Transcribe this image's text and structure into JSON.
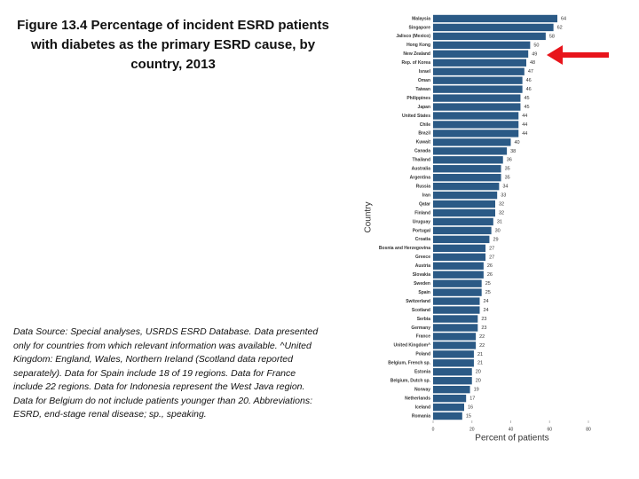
{
  "chart_data": {
    "type": "hbar",
    "title": "Figure 13.4 Percentage of incident ESRD patients with diabetes as the primary ESRD cause, by country, 2013",
    "source": "Data Source: Special analyses, USRDS ESRD Database. Data presented only for countries from which relevant information was available. ^United Kingdom: England, Wales, Northern Ireland (Scotland data reported separately). Data for Spain include 18 of 19 regions. Data for France include 22 regions. Data for Indonesia represent the West Java region. Data for Belgium do not include patients younger than 20. Abbreviations: ESRD, end-stage renal disease; sp., speaking.",
    "xlabel": "Percent of patients",
    "ylabel": "Country",
    "categories": [
      "Malaysia",
      "Singapore",
      "Jalisco (Mexico)",
      "Hong Kong",
      "New Zealand",
      "Rep. of Korea",
      "Israel",
      "Oman",
      "Taiwan",
      "Philippines",
      "Japan",
      "United States",
      "Chile",
      "Brazil",
      "Kuwait",
      "Canada",
      "Thailand",
      "Australia",
      "Argentina",
      "Russia",
      "Iran",
      "Qatar",
      "Finland",
      "Uruguay",
      "Portugal",
      "Croatia",
      "Bosnia and Herzegovina",
      "Greece",
      "Austria",
      "Slovakia",
      "Sweden",
      "Spain",
      "Switzerland",
      "Scotland",
      "Serbia",
      "Germany",
      "France",
      "United Kingdom^",
      "Poland",
      "Belgium, French sp.",
      "Estonia",
      "Belgium, Dutch sp.",
      "Norway",
      "Netherlands",
      "Iceland",
      "Romania"
    ],
    "values": [
      64,
      62,
      58,
      50,
      49,
      48,
      47,
      46,
      46,
      45,
      45,
      44,
      44,
      44,
      40,
      38,
      36,
      35,
      35,
      34,
      33,
      32,
      32,
      31,
      30,
      29,
      27,
      27,
      26,
      26,
      25,
      25,
      24,
      24,
      23,
      23,
      22,
      22,
      21,
      21,
      20,
      20,
      19,
      17,
      16,
      15
    ],
    "color": "#2b5a86",
    "xlim": [
      0,
      80
    ],
    "xticks": [
      0,
      20,
      40,
      60,
      80
    ]
  }
}
